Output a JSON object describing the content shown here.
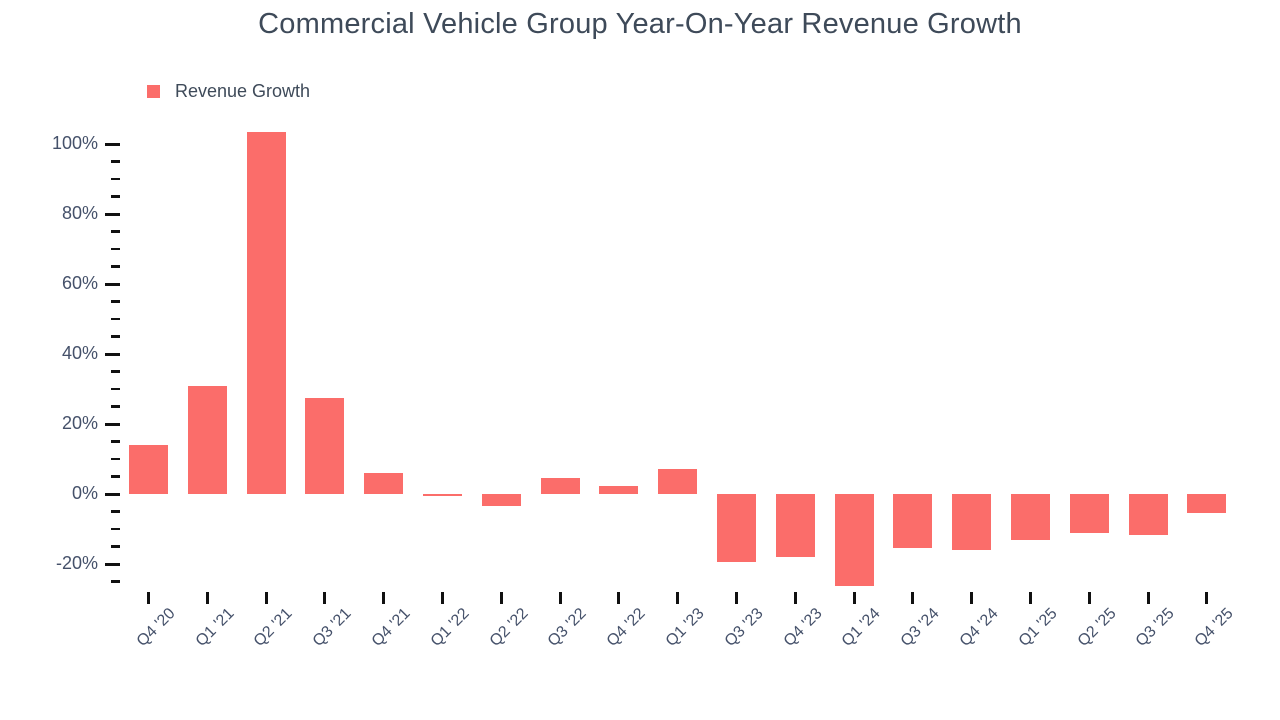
{
  "chart_data": {
    "type": "bar",
    "title": "Commercial Vehicle Group Year-On-Year Revenue Growth",
    "legend_label": "Revenue Growth",
    "legend_position": "top-left",
    "series_color": "#FB6D6A",
    "grid": false,
    "unit": "%",
    "xlabel": "",
    "ylabel": "",
    "categories": [
      "Q4 '20",
      "Q1 '21",
      "Q2 '21",
      "Q3 '21",
      "Q4 '21",
      "Q1 '22",
      "Q2 '22",
      "Q3 '22",
      "Q4 '22",
      "Q1 '23",
      "Q3 '23",
      "Q4 '23",
      "Q1 '24",
      "Q3 '24",
      "Q4 '24",
      "Q1 '25",
      "Q2 '25",
      "Q3 '25",
      "Q4 '25"
    ],
    "values": [
      14,
      31,
      103.5,
      27.5,
      6,
      -0.5,
      -3.3,
      4.7,
      2.4,
      7.1,
      -19.4,
      -17.9,
      -26.2,
      -15.5,
      -16,
      -13,
      -11.1,
      -11.6,
      -5.4
    ],
    "ylim": [
      -27,
      105
    ],
    "y_axis": {
      "major_ticks": [
        {
          "value": 100,
          "label": "100%"
        },
        {
          "value": 80,
          "label": "80%"
        },
        {
          "value": 60,
          "label": "60%"
        },
        {
          "value": 40,
          "label": "40%"
        },
        {
          "value": 20,
          "label": "20%"
        },
        {
          "value": 0,
          "label": "0%"
        },
        {
          "value": -20,
          "label": "-20%"
        }
      ],
      "minor_step": 5,
      "minor_from": 95,
      "minor_to": -25
    },
    "colors": {
      "title_text": "#3E4A59",
      "axis_text": "#45516A",
      "tick_mark": "#111111",
      "background": "#ffffff"
    }
  }
}
